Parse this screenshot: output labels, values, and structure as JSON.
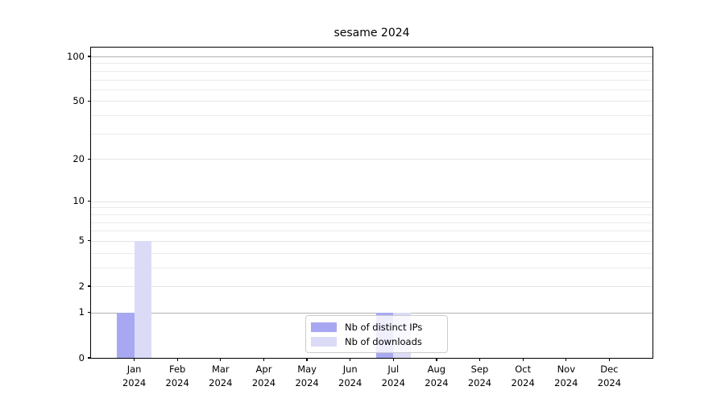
{
  "figure": {
    "title": "sesame 2024"
  },
  "chart_data": {
    "type": "bar",
    "title": "sesame 2024",
    "x_categories": [
      {
        "month": "Jan",
        "year": "2024"
      },
      {
        "month": "Feb",
        "year": "2024"
      },
      {
        "month": "Mar",
        "year": "2024"
      },
      {
        "month": "Apr",
        "year": "2024"
      },
      {
        "month": "May",
        "year": "2024"
      },
      {
        "month": "Jun",
        "year": "2024"
      },
      {
        "month": "Jul",
        "year": "2024"
      },
      {
        "month": "Aug",
        "year": "2024"
      },
      {
        "month": "Sep",
        "year": "2024"
      },
      {
        "month": "Oct",
        "year": "2024"
      },
      {
        "month": "Nov",
        "year": "2024"
      },
      {
        "month": "Dec",
        "year": "2024"
      }
    ],
    "series": [
      {
        "name": "Nb of distinct IPs",
        "color": "#a8a8f2",
        "values": [
          1,
          0,
          0,
          0,
          0,
          0,
          1,
          0,
          0,
          0,
          0,
          0
        ]
      },
      {
        "name": "Nb of downloads",
        "color": "#dbdbf8",
        "values": [
          5,
          0,
          0,
          0,
          0,
          0,
          1,
          0,
          0,
          0,
          0,
          0
        ]
      }
    ],
    "y_axis": {
      "ticks": [
        0,
        1,
        2,
        5,
        10,
        20,
        50,
        100
      ],
      "scale": "log10(1+v)",
      "max_displayed": 100,
      "minor_gridlines": [
        3,
        4,
        6,
        7,
        8,
        9,
        30,
        40,
        60,
        70,
        80,
        90
      ],
      "emphasized_gridlines": [
        1,
        100
      ]
    },
    "grid": "horizontal",
    "legend": {
      "position": "bottom-center",
      "items": [
        {
          "label": "Nb of distinct IPs",
          "color": "#a8a8f2"
        },
        {
          "label": "Nb of downloads",
          "color": "#dbdbf8"
        }
      ]
    },
    "colors": {
      "axis": "#000000",
      "grid_minor": "#ebebeb",
      "grid_major": "#e4e4e4",
      "grid_emphasis": "#b2b2b2",
      "background": "#ffffff"
    }
  }
}
